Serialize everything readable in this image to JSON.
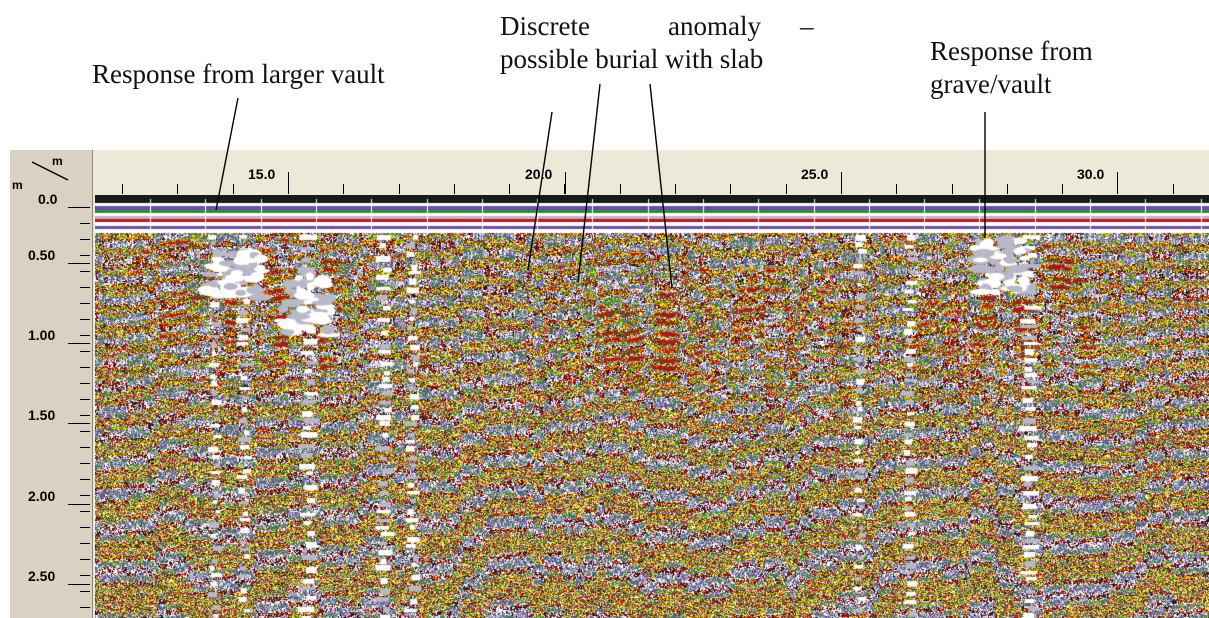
{
  "annotations": {
    "larger_vault": "Response from larger vault",
    "discrete_line1_a": "Discrete",
    "discrete_line1_b": "anomaly",
    "discrete_line1_c": "–",
    "discrete_line2": "possible burial with slab",
    "grave_line1": "Response from",
    "grave_line2": "grave/vault"
  },
  "axes": {
    "corner_unit_x": "m",
    "corner_unit_y": "m",
    "x_ticks": [
      "15.0",
      "20.0",
      "25.0",
      "30.0"
    ],
    "y_ticks": [
      "0.0",
      "0.50",
      "1.00",
      "1.50",
      "2.00",
      "2.50"
    ]
  },
  "palette": [
    "#c8101a",
    "#2e8b2e",
    "#f2e600",
    "#6a4fa8",
    "#ffffff",
    "#b8b8c8",
    "#1a1a1a",
    "#8a2318"
  ]
}
